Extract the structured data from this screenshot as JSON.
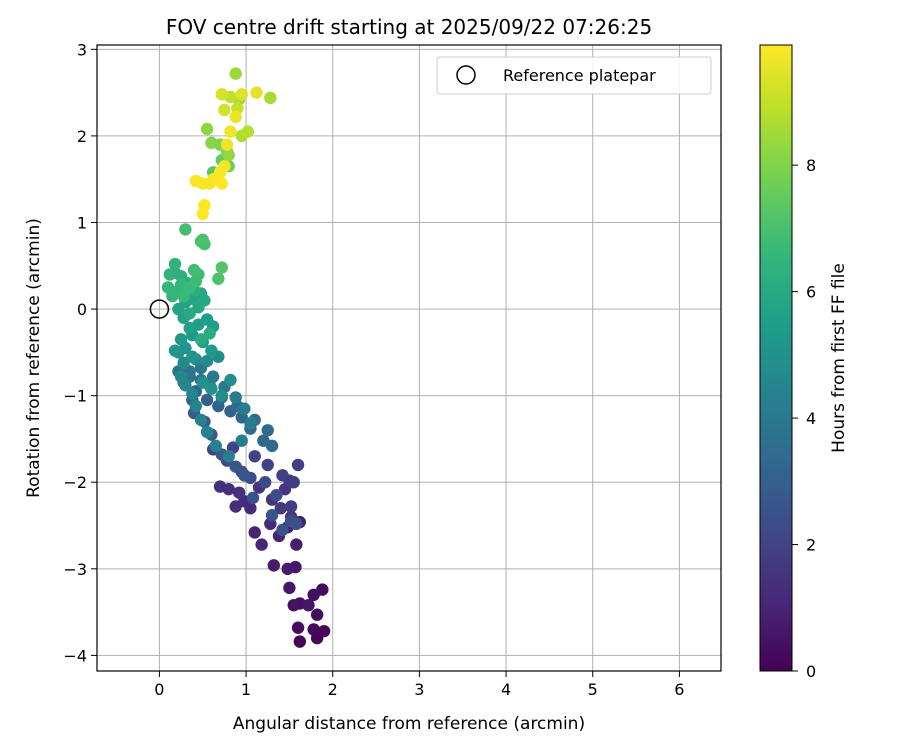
{
  "chart_data": {
    "type": "scatter",
    "title": "FOV centre drift starting at 2025/09/22 07:26:25",
    "xlabel": "Angular distance from reference (arcmin)",
    "ylabel": "Rotation from reference (arcmin)",
    "xlim": [
      -0.72,
      6.48
    ],
    "ylim": [
      -4.18,
      3.05
    ],
    "xticks": [
      0,
      1,
      2,
      3,
      4,
      5,
      6
    ],
    "yticks": [
      -4,
      -3,
      -2,
      -1,
      0,
      1,
      2,
      3
    ],
    "grid": true,
    "legend": {
      "position": "top-right",
      "entries": [
        "Reference platepar"
      ]
    },
    "reference_point": {
      "x": 0,
      "y": 0,
      "label": "Reference platepar"
    },
    "colorbar": {
      "label": "Hours from first FF file",
      "range": [
        0,
        9.9
      ],
      "ticks": [
        0,
        2,
        4,
        6,
        8
      ],
      "colormap": "viridis"
    },
    "colormap_stops": [
      "#440154",
      "#482878",
      "#3e4989",
      "#31688e",
      "#26828e",
      "#1f9e89",
      "#35b779",
      "#6ece58",
      "#b5de2b",
      "#fde725"
    ],
    "points": [
      [
        1.62,
        -3.84,
        0.05
      ],
      [
        1.82,
        -3.8,
        0.1
      ],
      [
        1.9,
        -3.72,
        0.15
      ],
      [
        1.78,
        -3.7,
        0.2
      ],
      [
        1.6,
        -3.68,
        0.25
      ],
      [
        1.82,
        -3.53,
        0.3
      ],
      [
        1.88,
        -3.24,
        0.35
      ],
      [
        1.78,
        -3.3,
        0.4
      ],
      [
        1.62,
        -3.4,
        0.45
      ],
      [
        1.55,
        -3.42,
        0.5
      ],
      [
        1.72,
        -3.42,
        0.55
      ],
      [
        1.5,
        -3.22,
        0.6
      ],
      [
        1.57,
        -2.98,
        0.65
      ],
      [
        1.48,
        -3.0,
        0.7
      ],
      [
        1.32,
        -2.96,
        0.75
      ],
      [
        1.58,
        -2.72,
        0.8
      ],
      [
        1.48,
        -2.52,
        0.85
      ],
      [
        1.62,
        -2.46,
        0.9
      ],
      [
        1.38,
        -2.62,
        0.95
      ],
      [
        1.1,
        -2.58,
        1.0
      ],
      [
        1.18,
        -2.72,
        1.05
      ],
      [
        1.28,
        -2.48,
        1.1
      ],
      [
        1.05,
        -2.3,
        1.15
      ],
      [
        0.98,
        -2.22,
        1.2
      ],
      [
        0.88,
        -2.28,
        1.25
      ],
      [
        0.7,
        -2.05,
        1.3
      ],
      [
        0.8,
        -2.08,
        1.35
      ],
      [
        0.92,
        -2.12,
        1.4
      ],
      [
        1.15,
        -2.06,
        1.45
      ],
      [
        1.3,
        -2.2,
        1.5
      ],
      [
        1.45,
        -2.08,
        1.55
      ],
      [
        1.52,
        -2.4,
        1.6
      ],
      [
        1.4,
        -2.3,
        1.65
      ],
      [
        1.5,
        -1.98,
        1.7
      ],
      [
        1.55,
        -2.0,
        1.75
      ],
      [
        1.52,
        -2.28,
        1.8
      ],
      [
        1.6,
        -1.8,
        1.85
      ],
      [
        1.42,
        -1.92,
        1.9
      ],
      [
        1.25,
        -1.8,
        1.95
      ],
      [
        1.1,
        -1.7,
        2.0
      ],
      [
        0.85,
        -1.6,
        2.05
      ],
      [
        0.62,
        -1.62,
        2.1
      ],
      [
        0.78,
        -1.75,
        2.15
      ],
      [
        0.95,
        -1.88,
        2.2
      ],
      [
        1.05,
        -1.95,
        2.25
      ],
      [
        1.22,
        -2.0,
        2.3
      ],
      [
        1.35,
        -2.15,
        2.35
      ],
      [
        1.52,
        -2.45,
        2.4
      ],
      [
        1.58,
        -2.48,
        2.45
      ],
      [
        1.42,
        -2.55,
        2.5
      ],
      [
        1.3,
        -2.38,
        2.55
      ],
      [
        1.08,
        -2.18,
        2.6
      ],
      [
        0.98,
        -1.92,
        2.65
      ],
      [
        0.88,
        -1.82,
        2.7
      ],
      [
        0.72,
        -1.68,
        2.75
      ],
      [
        0.6,
        -1.45,
        2.8
      ],
      [
        0.52,
        -1.3,
        2.85
      ],
      [
        0.4,
        -1.2,
        2.9
      ],
      [
        0.38,
        -1.05,
        2.95
      ],
      [
        0.42,
        -0.95,
        3.0
      ],
      [
        0.55,
        -1.05,
        3.05
      ],
      [
        0.68,
        -1.12,
        3.1
      ],
      [
        0.82,
        -1.18,
        3.15
      ],
      [
        0.95,
        -1.25,
        3.2
      ],
      [
        1.05,
        -1.38,
        3.25
      ],
      [
        1.2,
        -1.52,
        3.3
      ],
      [
        1.3,
        -1.58,
        3.35
      ],
      [
        1.25,
        -1.4,
        3.4
      ],
      [
        1.1,
        -1.28,
        3.45
      ],
      [
        0.9,
        -1.12,
        3.5
      ],
      [
        0.72,
        -1.02,
        3.55
      ],
      [
        0.58,
        -0.88,
        3.6
      ],
      [
        0.48,
        -0.82,
        3.65
      ],
      [
        0.35,
        -0.78,
        3.7
      ],
      [
        0.28,
        -0.85,
        3.75
      ],
      [
        0.22,
        -0.72,
        3.8
      ],
      [
        0.35,
        -0.72,
        3.85
      ],
      [
        0.48,
        -0.68,
        3.9
      ],
      [
        0.62,
        -0.78,
        3.95
      ],
      [
        0.75,
        -0.9,
        4.0
      ],
      [
        0.88,
        -1.02,
        4.05
      ],
      [
        0.98,
        -1.15,
        4.1
      ],
      [
        1.05,
        -1.32,
        4.15
      ],
      [
        0.95,
        -1.52,
        4.2
      ],
      [
        0.8,
        -1.7,
        4.25
      ],
      [
        0.65,
        -1.58,
        4.3
      ],
      [
        0.55,
        -1.42,
        4.35
      ],
      [
        0.48,
        -1.28,
        4.4
      ],
      [
        0.42,
        -1.12,
        4.45
      ],
      [
        0.38,
        -0.98,
        4.5
      ],
      [
        0.3,
        -0.88,
        4.55
      ],
      [
        0.25,
        -0.78,
        4.6
      ],
      [
        0.28,
        -0.62,
        4.65
      ],
      [
        0.42,
        -0.58,
        4.7
      ],
      [
        0.55,
        -0.6,
        4.75
      ],
      [
        0.68,
        -0.55,
        4.8
      ],
      [
        0.82,
        -0.82,
        4.85
      ],
      [
        0.72,
        -1.0,
        4.9
      ],
      [
        0.6,
        -0.92,
        4.95
      ],
      [
        0.5,
        -0.85,
        5.0
      ],
      [
        0.38,
        -0.55,
        5.05
      ],
      [
        0.3,
        -0.45,
        5.1
      ],
      [
        0.22,
        -0.5,
        5.15
      ],
      [
        0.18,
        -0.48,
        5.2
      ],
      [
        0.25,
        -0.35,
        5.25
      ],
      [
        0.38,
        -0.3,
        5.3
      ],
      [
        0.5,
        -0.38,
        5.35
      ],
      [
        0.6,
        -0.48,
        5.4
      ],
      [
        0.62,
        -0.2,
        5.45
      ],
      [
        0.55,
        -0.12,
        5.5
      ],
      [
        0.45,
        -0.18,
        5.55
      ],
      [
        0.35,
        -0.22,
        5.6
      ],
      [
        0.28,
        -0.1,
        5.65
      ],
      [
        0.22,
        0.0,
        5.7
      ],
      [
        0.3,
        0.08,
        5.75
      ],
      [
        0.38,
        0.12,
        5.8
      ],
      [
        0.48,
        0.18,
        5.85
      ],
      [
        0.52,
        0.1,
        5.9
      ],
      [
        0.45,
        0.02,
        5.95
      ],
      [
        0.35,
        -0.05,
        6.0
      ],
      [
        0.48,
        -0.35,
        6.05
      ],
      [
        0.58,
        -0.28,
        6.1
      ],
      [
        0.4,
        0.22,
        6.15
      ],
      [
        0.32,
        0.3,
        6.2
      ],
      [
        0.25,
        0.38,
        6.25
      ],
      [
        0.18,
        0.42,
        6.3
      ],
      [
        0.12,
        0.4,
        6.35
      ],
      [
        0.18,
        0.52,
        6.4
      ],
      [
        0.25,
        0.28,
        6.45
      ],
      [
        0.2,
        0.2,
        6.5
      ],
      [
        0.15,
        0.15,
        6.55
      ],
      [
        0.1,
        0.25,
        6.6
      ],
      [
        0.28,
        0.15,
        6.65
      ],
      [
        0.35,
        0.25,
        6.7
      ],
      [
        0.42,
        0.32,
        6.75
      ],
      [
        0.45,
        0.4,
        6.8
      ],
      [
        0.4,
        0.45,
        6.85
      ],
      [
        0.3,
        0.92,
        6.9
      ],
      [
        0.48,
        0.78,
        6.95
      ],
      [
        0.52,
        0.75,
        7.0
      ],
      [
        0.5,
        0.8,
        7.05
      ],
      [
        0.68,
        0.35,
        7.1
      ],
      [
        0.72,
        0.48,
        7.15
      ],
      [
        0.62,
        1.58,
        7.3
      ],
      [
        0.72,
        1.72,
        7.5
      ],
      [
        0.8,
        1.65,
        7.7
      ],
      [
        0.78,
        1.82,
        7.9
      ],
      [
        0.7,
        1.9,
        8.0
      ],
      [
        0.6,
        1.92,
        8.1
      ],
      [
        0.55,
        2.08,
        8.2
      ],
      [
        0.8,
        1.78,
        8.3
      ],
      [
        0.88,
        2.72,
        8.4
      ],
      [
        0.92,
        2.42,
        8.5
      ],
      [
        1.28,
        2.44,
        8.6
      ],
      [
        0.95,
        2.0,
        8.7
      ],
      [
        1.02,
        2.05,
        8.8
      ],
      [
        0.82,
        2.45,
        9.0
      ],
      [
        0.9,
        2.32,
        9.1
      ],
      [
        0.75,
        2.3,
        9.2
      ],
      [
        0.72,
        2.48,
        9.3
      ],
      [
        0.95,
        2.48,
        9.4
      ],
      [
        1.12,
        2.5,
        9.5
      ],
      [
        0.88,
        2.22,
        9.6
      ],
      [
        0.82,
        2.05,
        9.65
      ],
      [
        0.78,
        1.9,
        9.7
      ],
      [
        0.75,
        1.65,
        9.72
      ],
      [
        0.7,
        1.58,
        9.75
      ],
      [
        0.62,
        1.5,
        9.78
      ],
      [
        0.58,
        1.45,
        9.8
      ],
      [
        0.5,
        1.45,
        9.82
      ],
      [
        0.42,
        1.48,
        9.84
      ],
      [
        0.72,
        1.45,
        9.86
      ],
      [
        0.68,
        1.5,
        9.88
      ],
      [
        0.52,
        1.2,
        9.9
      ],
      [
        0.5,
        1.1,
        9.9
      ]
    ]
  }
}
